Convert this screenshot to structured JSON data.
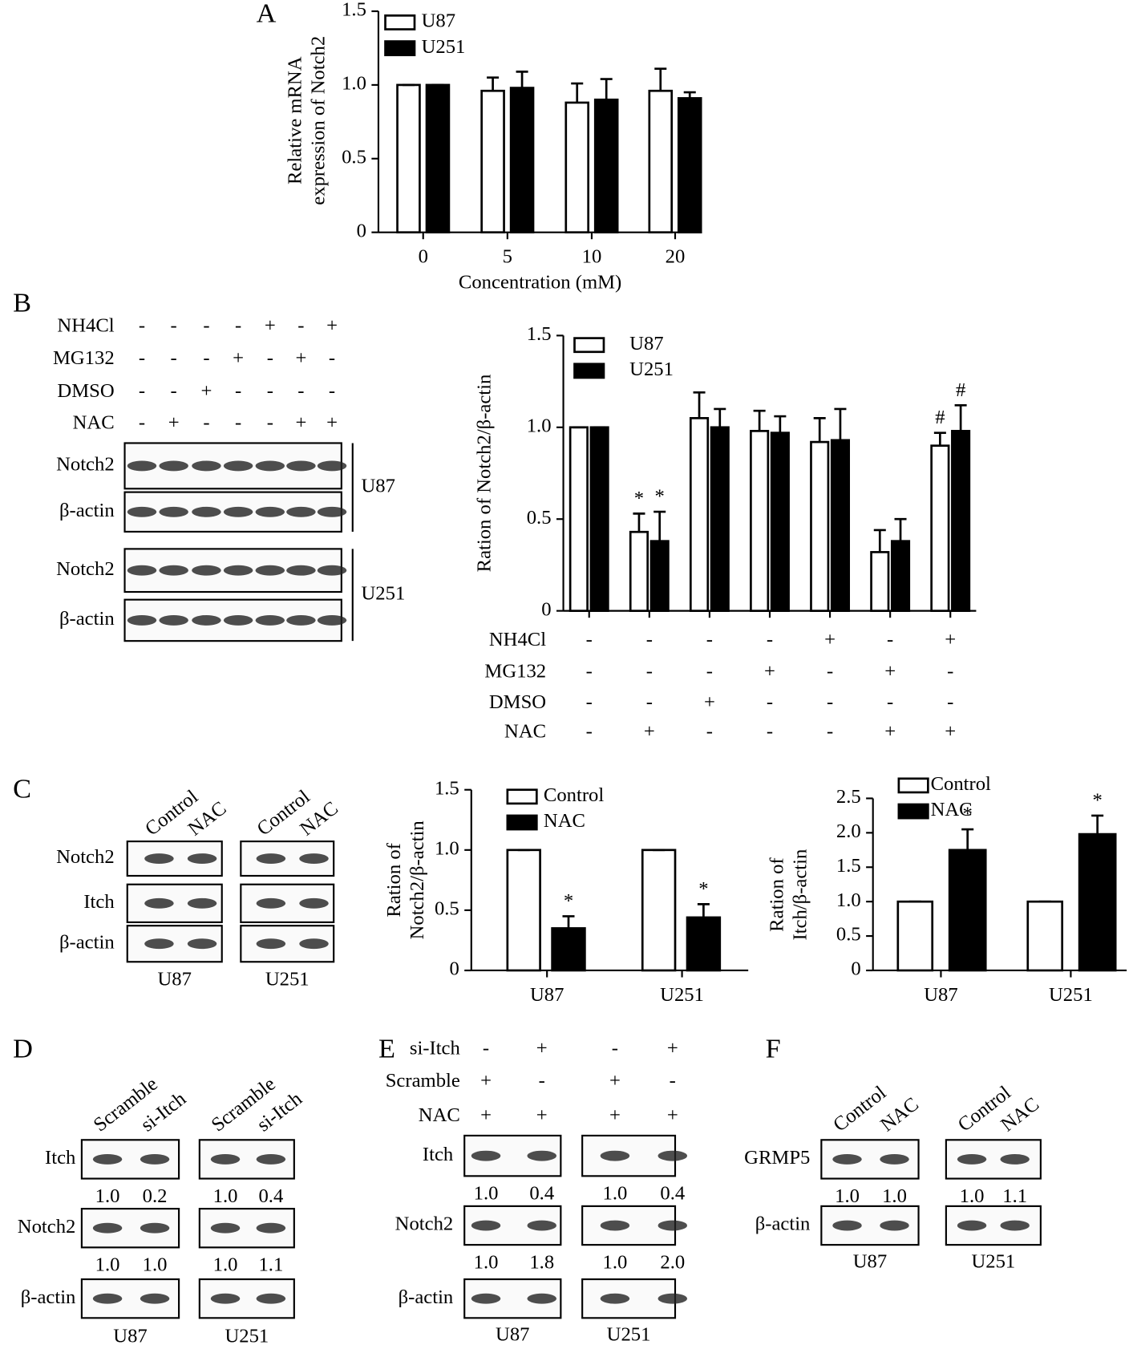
{
  "panel_labels": [
    "A",
    "B",
    "C",
    "D",
    "E",
    "F"
  ],
  "chart_data": [
    {
      "type": "bar",
      "ylabel": [
        "Relative mRNA",
        "expression of  Notch2"
      ],
      "xlabel": "Concentration (mM)",
      "categories": [
        "0",
        "5",
        "10",
        "20"
      ],
      "ylim": [
        0,
        1.5
      ],
      "yticks": [
        0,
        0.5,
        {
          "value": 1,
          "label": "1.0"
        },
        1.5
      ],
      "series": [
        {
          "name": "U87",
          "color": "#ffffff",
          "values": [
            1.0,
            0.96,
            0.88,
            0.96
          ],
          "errors": [
            0,
            0.09,
            0.13,
            0.15
          ]
        },
        {
          "name": "U251",
          "color": "#000000",
          "values": [
            1.0,
            0.98,
            0.9,
            0.91
          ],
          "errors": [
            0,
            0.11,
            0.14,
            0.04
          ]
        }
      ]
    },
    {
      "type": "bar",
      "ylabel": [
        "Ration of  Notch2/β-actin"
      ],
      "categories": [
        null,
        null,
        null,
        null,
        null,
        null,
        null
      ],
      "ylim": [
        0,
        1.5
      ],
      "yticks": [
        0,
        0.5,
        {
          "value": 1,
          "label": "1.0"
        },
        1.5
      ],
      "series": [
        {
          "name": "U87",
          "color": "#ffffff",
          "values": [
            1.0,
            0.43,
            1.05,
            0.98,
            0.92,
            0.32,
            0.9
          ],
          "errors": [
            0,
            0.1,
            0.14,
            0.11,
            0.13,
            0.12,
            0.07
          ],
          "annotations": [
            null,
            "*",
            null,
            null,
            null,
            null,
            "#"
          ]
        },
        {
          "name": "U251",
          "color": "#000000",
          "values": [
            1.0,
            0.38,
            1.0,
            0.97,
            0.93,
            0.38,
            0.98
          ],
          "errors": [
            0,
            0.16,
            0.1,
            0.09,
            0.17,
            0.12,
            0.14
          ],
          "annotations": [
            null,
            "*",
            null,
            null,
            null,
            null,
            "#"
          ]
        }
      ],
      "conditions": [
        {
          "name": "NH4Cl",
          "marks": [
            "-",
            "-",
            "-",
            "-",
            "+",
            "-",
            "+"
          ]
        },
        {
          "name": "MG132",
          "marks": [
            "-",
            "-",
            "-",
            "+",
            "-",
            "+",
            "-"
          ]
        },
        {
          "name": "DMSO",
          "marks": [
            "-",
            "-",
            "+",
            "-",
            "-",
            "-",
            "-"
          ]
        },
        {
          "name": "NAC",
          "marks": [
            "-",
            "+",
            "-",
            "-",
            "-",
            "+",
            "+"
          ]
        }
      ]
    },
    {
      "type": "bar",
      "ylabel": [
        "Ration of",
        "Notch2/β-actin"
      ],
      "categories": [
        "U87",
        "U251"
      ],
      "ylim": [
        0,
        1.5
      ],
      "yticks": [
        0,
        0.5,
        {
          "value": 1,
          "label": "1.0"
        },
        1.5
      ],
      "series": [
        {
          "name": "Control",
          "color": "#ffffff",
          "values": [
            1.0,
            1.0
          ],
          "errors": [
            0,
            0
          ]
        },
        {
          "name": "NAC",
          "color": "#000000",
          "values": [
            0.35,
            0.44
          ],
          "errors": [
            0.1,
            0.11
          ],
          "annotations": [
            "*",
            "*"
          ]
        }
      ]
    },
    {
      "type": "bar",
      "ylabel": [
        "Ration of",
        "Itch/β-actin"
      ],
      "categories": [
        "U87",
        "U251"
      ],
      "ylim": [
        0,
        2.5
      ],
      "yticks": [
        0,
        0.5,
        {
          "value": 1,
          "label": "1.0"
        },
        1.5,
        {
          "value": 2,
          "label": "2.0"
        },
        2.5
      ],
      "series": [
        {
          "name": "Control",
          "color": "#ffffff",
          "values": [
            1.0,
            1.0
          ],
          "errors": [
            0,
            0
          ]
        },
        {
          "name": "NAC",
          "color": "#000000",
          "values": [
            1.75,
            1.98
          ],
          "errors": [
            0.3,
            0.27
          ],
          "annotations": [
            "*",
            "*"
          ]
        }
      ]
    }
  ],
  "blots": [
    {
      "conditions": [
        {
          "name": "NH4Cl",
          "marks": [
            "-",
            "-",
            "-",
            "-",
            "+",
            "-",
            "+"
          ]
        },
        {
          "name": "MG132",
          "marks": [
            "-",
            "-",
            "-",
            "+",
            "-",
            "+",
            "-"
          ]
        },
        {
          "name": "DMSO",
          "marks": [
            "-",
            "-",
            "+",
            "-",
            "-",
            "-",
            "-"
          ]
        },
        {
          "name": "NAC",
          "marks": [
            "-",
            "+",
            "-",
            "-",
            "-",
            "+",
            "+"
          ]
        }
      ],
      "cells": [
        "U87",
        "U251"
      ],
      "rows": [
        {
          "label": "Notch2"
        },
        {
          "label": "β-actin"
        },
        {
          "label": "Notch2"
        },
        {
          "label": "β-actin"
        }
      ]
    },
    {
      "lanes": [
        "Control",
        "NAC"
      ],
      "cells": [
        "U87",
        "U251"
      ],
      "rows": [
        {
          "label": "Notch2"
        },
        {
          "label": "Itch"
        },
        {
          "label": "β-actin"
        }
      ]
    },
    {
      "lanes": [
        "Scramble",
        "si-Itch"
      ],
      "cells": [
        "U87",
        "U251"
      ],
      "rows": [
        {
          "label": "Itch",
          "quant": [
            [
              "1.0",
              "0.2"
            ],
            [
              "1.0",
              "0.4"
            ]
          ]
        },
        {
          "label": "Notch2",
          "quant": [
            [
              "1.0",
              "1.0"
            ],
            [
              "1.0",
              "1.1"
            ]
          ]
        },
        {
          "label": "β-actin"
        }
      ]
    },
    {
      "conditions": [
        {
          "name": "si-Itch",
          "marks": [
            "-",
            "+",
            "-",
            "+"
          ]
        },
        {
          "name": "Scramble",
          "marks": [
            "+",
            "-",
            "+",
            "-"
          ]
        },
        {
          "name": "NAC",
          "marks": [
            "+",
            "+",
            "+",
            "+"
          ]
        }
      ],
      "cells": [
        "U87",
        "U251"
      ],
      "rows": [
        {
          "label": "Itch",
          "quant": [
            [
              "1.0",
              "0.4"
            ],
            [
              "1.0",
              "0.4"
            ]
          ]
        },
        {
          "label": "Notch2",
          "quant": [
            [
              "1.0",
              "1.8"
            ],
            [
              "1.0",
              "2.0"
            ]
          ]
        },
        {
          "label": "β-actin"
        }
      ]
    },
    {
      "lanes": [
        "Control",
        "NAC"
      ],
      "cells": [
        "U87",
        "U251"
      ],
      "rows": [
        {
          "label": "GRMP5",
          "quant": [
            [
              "1.0",
              "1.0"
            ],
            [
              "1.0",
              "1.1"
            ]
          ]
        },
        {
          "label": "β-actin"
        }
      ]
    }
  ]
}
